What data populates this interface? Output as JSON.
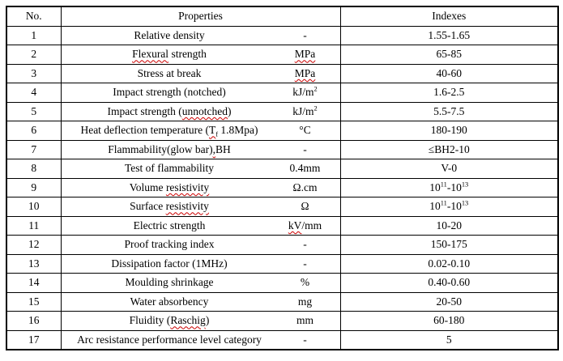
{
  "colors": {
    "border": "#000000",
    "text": "#000000",
    "background": "#ffffff",
    "spellcheck_underline": "#cc0000"
  },
  "table": {
    "headers": [
      "No.",
      "Properties",
      "Indexes"
    ],
    "rows": [
      {
        "no": "1",
        "property": [
          {
            "t": "Relative density"
          }
        ],
        "unit": [
          {
            "t": "-"
          }
        ],
        "index": [
          {
            "t": "1.55-1.65"
          }
        ]
      },
      {
        "no": "2",
        "property": [
          {
            "t": "Flexural",
            "mis": true
          },
          {
            "t": " strength"
          }
        ],
        "unit": [
          {
            "t": "MPa",
            "mis": true
          }
        ],
        "index": [
          {
            "t": "65-85"
          }
        ]
      },
      {
        "no": "3",
        "property": [
          {
            "t": "Stress at break"
          }
        ],
        "unit": [
          {
            "t": "MPa",
            "mis": true
          }
        ],
        "index": [
          {
            "t": "40-60"
          }
        ]
      },
      {
        "no": "4",
        "property": [
          {
            "t": "Impact strength (notched)"
          }
        ],
        "unit": [
          {
            "t": "kJ/m"
          },
          {
            "t": "2",
            "sup": true
          }
        ],
        "index": [
          {
            "t": "1.6-2.5"
          }
        ]
      },
      {
        "no": "5",
        "property": [
          {
            "t": "Impact strength ("
          },
          {
            "t": "unnotched",
            "mis": true
          },
          {
            "t": ")"
          }
        ],
        "unit": [
          {
            "t": "kJ/m"
          },
          {
            "t": "2",
            "sup": true
          }
        ],
        "index": [
          {
            "t": "5.5-7.5"
          }
        ]
      },
      {
        "no": "6",
        "property": [
          {
            "t": "Heat deflection temperature ("
          },
          {
            "t": "T",
            "mis": true
          },
          {
            "t": "f",
            "sub": true,
            "mis": true
          },
          {
            "t": " 1.8Mpa)"
          }
        ],
        "unit": [
          {
            "t": "°C"
          }
        ],
        "index": [
          {
            "t": "180-190"
          }
        ]
      },
      {
        "no": "7",
        "property": [
          {
            "t": "Flammability(glow bar)"
          },
          {
            "t": ",",
            "mis": true
          },
          {
            "t": "BH"
          }
        ],
        "unit": [
          {
            "t": "-"
          }
        ],
        "index": [
          {
            "t": "≤BH2-10"
          }
        ]
      },
      {
        "no": "8",
        "property": [
          {
            "t": "Test of flammability"
          }
        ],
        "unit": [
          {
            "t": "0.4mm"
          }
        ],
        "index": [
          {
            "t": "V-0"
          }
        ]
      },
      {
        "no": "9",
        "property": [
          {
            "t": "Volume "
          },
          {
            "t": "resistivity",
            "mis": true
          }
        ],
        "unit": [
          {
            "t": "Ω.cm"
          }
        ],
        "index": [
          {
            "t": "10"
          },
          {
            "t": "11",
            "sup": true
          },
          {
            "t": "-10"
          },
          {
            "t": "13",
            "sup": true
          }
        ]
      },
      {
        "no": "10",
        "property": [
          {
            "t": "Surface "
          },
          {
            "t": "resistivity",
            "mis": true
          }
        ],
        "unit": [
          {
            "t": "Ω"
          }
        ],
        "index": [
          {
            "t": "10"
          },
          {
            "t": "11",
            "sup": true
          },
          {
            "t": "-10"
          },
          {
            "t": "13",
            "sup": true
          }
        ]
      },
      {
        "no": "11",
        "property": [
          {
            "t": "Electric strength"
          }
        ],
        "unit": [
          {
            "t": "kV",
            "mis": true
          },
          {
            "t": "/mm"
          }
        ],
        "index": [
          {
            "t": "10-20"
          }
        ]
      },
      {
        "no": "12",
        "property": [
          {
            "t": "Proof tracking index"
          }
        ],
        "unit": [
          {
            "t": "-"
          }
        ],
        "index": [
          {
            "t": "150-175"
          }
        ]
      },
      {
        "no": "13",
        "property": [
          {
            "t": "Dissipation factor (1MHz)"
          }
        ],
        "unit": [
          {
            "t": "-"
          }
        ],
        "index": [
          {
            "t": "0.02-0.10"
          }
        ]
      },
      {
        "no": "14",
        "property": [
          {
            "t": "Moulding shrinkage"
          }
        ],
        "unit": [
          {
            "t": "%"
          }
        ],
        "index": [
          {
            "t": "0.40-0.60"
          }
        ]
      },
      {
        "no": "15",
        "property": [
          {
            "t": "Water absorbency"
          }
        ],
        "unit": [
          {
            "t": "mg"
          }
        ],
        "index": [
          {
            "t": "20-50"
          }
        ]
      },
      {
        "no": "16",
        "property": [
          {
            "t": "Fluidity ("
          },
          {
            "t": "Raschig",
            "mis": true
          },
          {
            "t": ")"
          }
        ],
        "unit": [
          {
            "t": "mm"
          }
        ],
        "index": [
          {
            "t": "60-180"
          }
        ]
      },
      {
        "no": "17",
        "property": [
          {
            "t": "Arc resistance performance level category"
          }
        ],
        "unit": [
          {
            "t": "-"
          }
        ],
        "index": [
          {
            "t": "5"
          }
        ]
      }
    ]
  }
}
